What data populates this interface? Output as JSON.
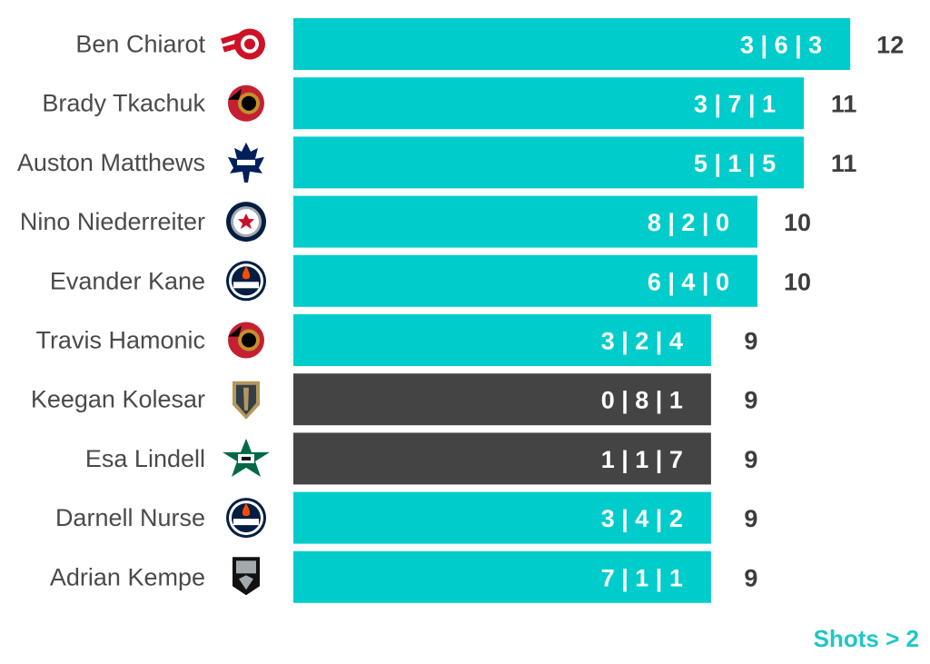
{
  "chart_data": {
    "type": "bar",
    "orientation": "horizontal",
    "grid": false,
    "legend": "none",
    "players": [
      {
        "name": "Ben Chiarot",
        "team_icon": "detroit-red-wings-logo",
        "breakdown": "3 | 6 | 3",
        "value": 12,
        "highlight": false
      },
      {
        "name": "Brady Tkachuk",
        "team_icon": "ottawa-senators-logo",
        "breakdown": "3 | 7 | 1",
        "value": 11,
        "highlight": false
      },
      {
        "name": "Auston Matthews",
        "team_icon": "toronto-maple-leafs-logo",
        "breakdown": "5 | 1 | 5",
        "value": 11,
        "highlight": false
      },
      {
        "name": "Nino Niederreiter",
        "team_icon": "winnipeg-jets-logo",
        "breakdown": "8 | 2 | 0",
        "value": 10,
        "highlight": false
      },
      {
        "name": "Evander Kane",
        "team_icon": "edmonton-oilers-logo",
        "breakdown": "6 | 4 | 0",
        "value": 10,
        "highlight": false
      },
      {
        "name": "Travis Hamonic",
        "team_icon": "ottawa-senators-logo",
        "breakdown": "3 | 2 | 4",
        "value": 9,
        "highlight": false
      },
      {
        "name": "Keegan Kolesar",
        "team_icon": "vegas-golden-knights-logo",
        "breakdown": "0 | 8 | 1",
        "value": 9,
        "highlight": true
      },
      {
        "name": "Esa Lindell",
        "team_icon": "dallas-stars-logo",
        "breakdown": "1 | 1 | 7",
        "value": 9,
        "highlight": true
      },
      {
        "name": "Darnell Nurse",
        "team_icon": "edmonton-oilers-logo",
        "breakdown": "3 | 4 | 2",
        "value": 9,
        "highlight": false
      },
      {
        "name": "Adrian Kempe",
        "team_icon": "los-angeles-kings-logo",
        "breakdown": "7 | 1 | 1",
        "value": 9,
        "highlight": false
      }
    ],
    "colors": {
      "bar": "#00cccc",
      "highlight": "#444444"
    }
  },
  "footnote": "Shots > 2"
}
